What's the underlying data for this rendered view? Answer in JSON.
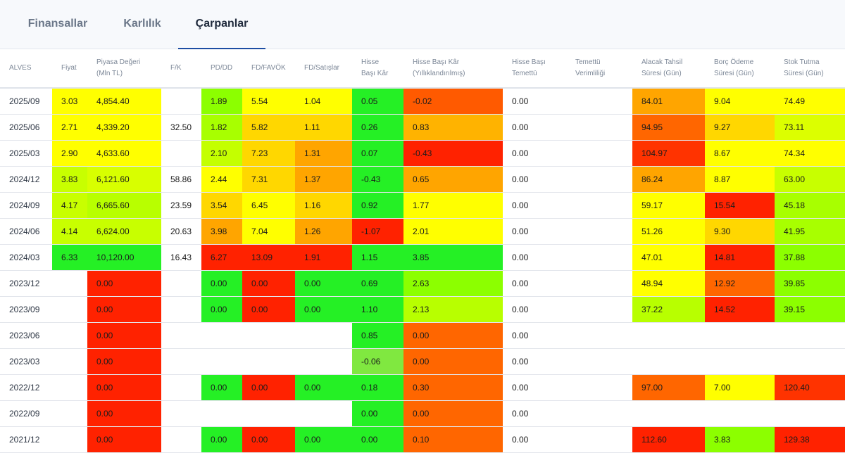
{
  "tabs": [
    {
      "label": "Finansallar",
      "active": false
    },
    {
      "label": "Karlılık",
      "active": false
    },
    {
      "label": "Çarpanlar",
      "active": true
    }
  ],
  "table": {
    "columns": [
      "ALVES",
      "Fiyat",
      "Piyasa Değeri\n(Mln TL)",
      "F/K",
      "PD/DD",
      "FD/FAVÖK",
      "FD/Satışlar",
      "Hisse\nBaşı Kâr",
      "Hisse Başı Kâr\n(Yıllıklandırılmış)",
      "Hisse Başı\nTemettü",
      "Temettü\nVerimliliği",
      "Alacak Tahsil\nSüresi (Gün)",
      "Borç Ödeme\nSüresi (Gün)",
      "Stok Tutma\nSüresi (Gün)"
    ],
    "rows": [
      [
        "2025/09",
        "3.03",
        "4,854.40",
        "",
        "1.89",
        "5.54",
        "1.04",
        "0.05",
        "-0.02",
        "0.00",
        "",
        "84.01",
        "9.04",
        "74.49"
      ],
      [
        "2025/06",
        "2.71",
        "4,339.20",
        "32.50",
        "1.82",
        "5.82",
        "1.11",
        "0.26",
        "0.83",
        "0.00",
        "",
        "94.95",
        "9.27",
        "73.11"
      ],
      [
        "2025/03",
        "2.90",
        "4,633.60",
        "",
        "2.10",
        "7.23",
        "1.31",
        "0.07",
        "-0.43",
        "0.00",
        "",
        "104.97",
        "8.67",
        "74.34"
      ],
      [
        "2024/12",
        "3.83",
        "6,121.60",
        "58.86",
        "2.44",
        "7.31",
        "1.37",
        "-0.43",
        "0.65",
        "0.00",
        "",
        "86.24",
        "8.87",
        "63.00"
      ],
      [
        "2024/09",
        "4.17",
        "6,665.60",
        "23.59",
        "3.54",
        "6.45",
        "1.16",
        "0.92",
        "1.77",
        "0.00",
        "",
        "59.17",
        "15.54",
        "45.18"
      ],
      [
        "2024/06",
        "4.14",
        "6,624.00",
        "20.63",
        "3.98",
        "7.04",
        "1.26",
        "-1.07",
        "2.01",
        "0.00",
        "",
        "51.26",
        "9.30",
        "41.95"
      ],
      [
        "2024/03",
        "6.33",
        "10,120.00",
        "16.43",
        "6.27",
        "13.09",
        "1.91",
        "1.15",
        "3.85",
        "0.00",
        "",
        "47.01",
        "14.81",
        "37.88"
      ],
      [
        "2023/12",
        "",
        "0.00",
        "",
        "0.00",
        "0.00",
        "0.00",
        "0.69",
        "2.63",
        "0.00",
        "",
        "48.94",
        "12.92",
        "39.85"
      ],
      [
        "2023/09",
        "",
        "0.00",
        "",
        "0.00",
        "0.00",
        "0.00",
        "1.10",
        "2.13",
        "0.00",
        "",
        "37.22",
        "14.52",
        "39.15"
      ],
      [
        "2023/06",
        "",
        "0.00",
        "",
        "",
        "",
        "",
        "0.85",
        "0.00",
        "0.00",
        "",
        "",
        "",
        ""
      ],
      [
        "2023/03",
        "",
        "0.00",
        "",
        "",
        "",
        "",
        "-0.06",
        "0.00",
        "0.00",
        "",
        "",
        "",
        ""
      ],
      [
        "2022/12",
        "",
        "0.00",
        "",
        "0.00",
        "0.00",
        "0.00",
        "0.18",
        "0.30",
        "0.00",
        "",
        "97.00",
        "7.00",
        "120.40"
      ],
      [
        "2022/09",
        "",
        "0.00",
        "",
        "",
        "",
        "",
        "0.00",
        "0.00",
        "0.00",
        "",
        "",
        "",
        ""
      ],
      [
        "2021/12",
        "",
        "0.00",
        "",
        "0.00",
        "0.00",
        "0.00",
        "0.00",
        "0.10",
        "0.00",
        "",
        "112.60",
        "3.83",
        "129.38"
      ]
    ],
    "cell_colors": [
      [
        "",
        "#ffff00",
        "#ffff00",
        "",
        "#8cff00",
        "#ffff00",
        "#ffff00",
        "#25f025",
        "#ff5a00",
        "",
        "",
        "#ffa500",
        "#ffff00",
        "#ffff00"
      ],
      [
        "",
        "#ffff00",
        "#ffff00",
        "",
        "#a8ff00",
        "#ffd700",
        "#ffd700",
        "#25f025",
        "#ffb300",
        "",
        "",
        "#ff6600",
        "#ffd700",
        "#dcff00"
      ],
      [
        "",
        "#ffff00",
        "#ffff00",
        "",
        "#c4ff00",
        "#ffd700",
        "#ffa500",
        "#25f025",
        "#ff2200",
        "",
        "",
        "#ff3300",
        "#ffff00",
        "#ffff00"
      ],
      [
        "",
        "#c8ff00",
        "#d8ff00",
        "",
        "#ffff00",
        "#ffd700",
        "#ffa500",
        "#25f025",
        "#ffa500",
        "",
        "",
        "#ffa500",
        "#ffff00",
        "#c8ff00"
      ],
      [
        "",
        "#c8ff00",
        "#b8ff00",
        "",
        "#ffd700",
        "#ffff00",
        "#ffd700",
        "#25f025",
        "#ffff00",
        "",
        "",
        "#ffff00",
        "#ff2200",
        "#a8ff00"
      ],
      [
        "",
        "#c8ff00",
        "#c8ff00",
        "",
        "#ffa500",
        "#ffff00",
        "#ffa500",
        "#ff2200",
        "#ffff00",
        "",
        "",
        "#ffff00",
        "#ffd700",
        "#a8ff00"
      ],
      [
        "",
        "#25f025",
        "#25f025",
        "",
        "#ff2200",
        "#ff2200",
        "#ff2200",
        "#25f025",
        "#25f025",
        "",
        "",
        "#ffff00",
        "#ff2200",
        "#8cff00"
      ],
      [
        "",
        "",
        "#ff2200",
        "",
        "#25f025",
        "#ff2200",
        "#25f025",
        "#25f025",
        "#8cff00",
        "",
        "",
        "#ffff00",
        "#ff6600",
        "#8cff00"
      ],
      [
        "",
        "",
        "#ff2200",
        "",
        "#25f025",
        "#ff2200",
        "#25f025",
        "#25f025",
        "#b8ff00",
        "",
        "",
        "#b8ff00",
        "#ff2200",
        "#8cff00"
      ],
      [
        "",
        "",
        "#ff2200",
        "",
        "",
        "",
        "",
        "#25f025",
        "#ff6600",
        "",
        "",
        "",
        "",
        ""
      ],
      [
        "",
        "",
        "#ff2200",
        "",
        "",
        "",
        "",
        "#80e840",
        "#ff6600",
        "",
        "",
        "",
        "",
        ""
      ],
      [
        "",
        "",
        "#ff2200",
        "",
        "#25f025",
        "#ff2200",
        "#25f025",
        "#25f025",
        "#ff6600",
        "",
        "",
        "#ff6600",
        "#ffff00",
        "#ff3300"
      ],
      [
        "",
        "",
        "#ff2200",
        "",
        "",
        "",
        "",
        "#25f025",
        "#ff6600",
        "",
        "",
        "",
        "",
        ""
      ],
      [
        "",
        "",
        "#ff2200",
        "",
        "#25f025",
        "#ff2200",
        "#25f025",
        "#25f025",
        "#ff6600",
        "",
        "",
        "#ff2200",
        "#8cff00",
        "#ff2200"
      ]
    ]
  },
  "colors": {
    "tab_active_underline": "#1d4ea3",
    "tab_text": "#6b7789",
    "tab_text_active": "#1f2a3c"
  }
}
